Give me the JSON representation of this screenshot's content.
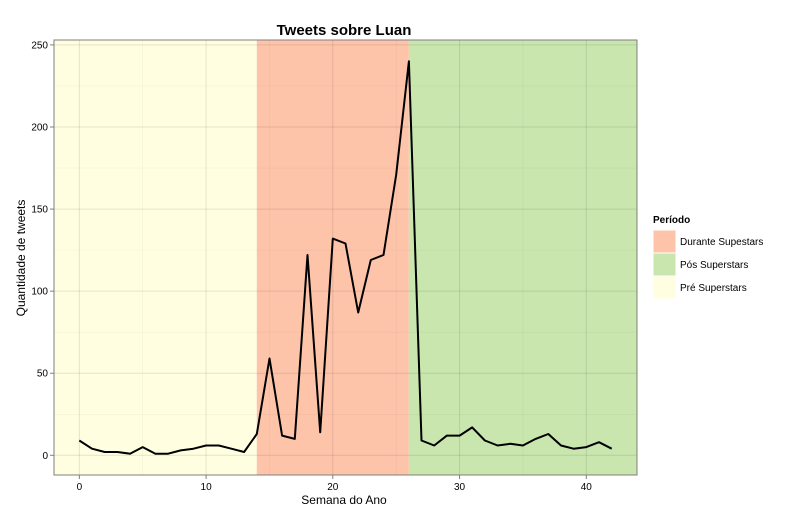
{
  "chart_data": {
    "type": "line",
    "title": "Tweets sobre Luan",
    "xlabel": "Semana do Ano",
    "ylabel": "Quantidade de tweets",
    "xlim": [
      -2,
      44
    ],
    "ylim": [
      -12,
      253
    ],
    "xticks": [
      0,
      10,
      20,
      30,
      40
    ],
    "yticks": [
      0,
      50,
      100,
      150,
      200,
      250
    ],
    "grid": true,
    "legend_placement": "right",
    "legend": {
      "title": "Período",
      "entries": [
        {
          "label": "Durante Supestars",
          "color": "#fdc4aa"
        },
        {
          "label": "Pós Superstars",
          "color": "#c9e6ae"
        },
        {
          "label": "Pré Superstars",
          "color": "#fffee0"
        }
      ]
    },
    "periods": [
      {
        "name": "Pré Superstars",
        "start": -2,
        "end": 14,
        "color": "#fffee0"
      },
      {
        "name": "Durante Supestars",
        "start": 14,
        "end": 26,
        "color": "#fdc4aa"
      },
      {
        "name": "Pós Superstars",
        "start": 26,
        "end": 44,
        "color": "#c9e6ae"
      }
    ],
    "series": [
      {
        "color": "#000000",
        "x": [
          0,
          1,
          2,
          3,
          4,
          5,
          6,
          7,
          8,
          9,
          10,
          11,
          12,
          13,
          14,
          15,
          16,
          17,
          18,
          19,
          20,
          21,
          22,
          23,
          24,
          25,
          26,
          27,
          28,
          29,
          30,
          31,
          32,
          33,
          34,
          35,
          36,
          37,
          38,
          39,
          40,
          41,
          42
        ],
        "values": [
          9,
          4,
          2,
          2,
          1,
          5,
          1,
          1,
          3,
          4,
          6,
          6,
          4,
          2,
          13,
          59,
          12,
          10,
          122,
          14,
          132,
          129,
          87,
          119,
          122,
          171,
          240,
          9,
          6,
          12,
          12,
          17,
          9,
          6,
          7,
          6,
          10,
          13,
          6,
          4,
          5,
          8,
          4
        ]
      }
    ]
  }
}
